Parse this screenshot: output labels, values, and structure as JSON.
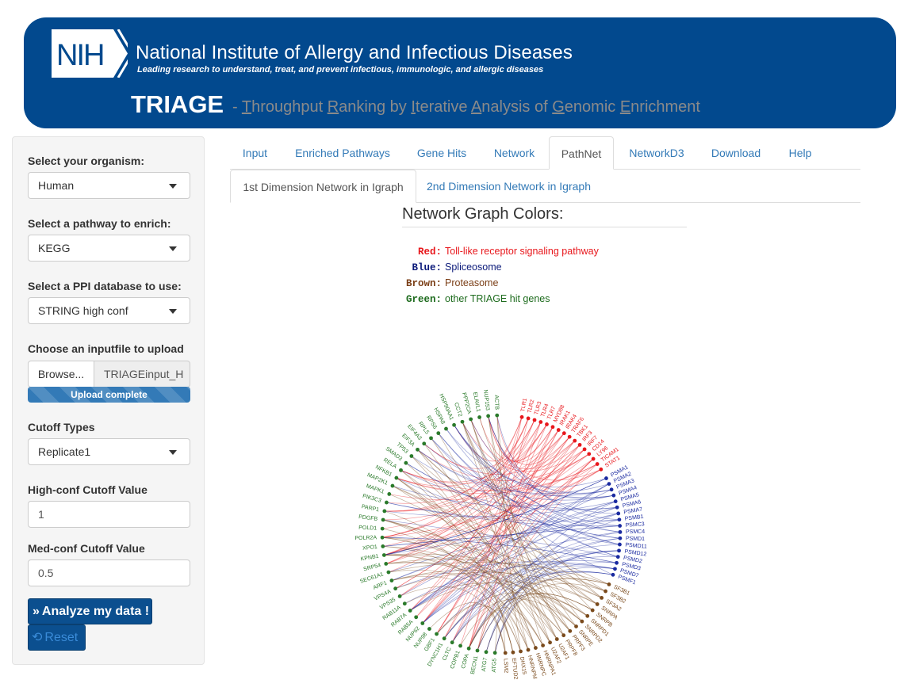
{
  "header": {
    "logo_text": "NIH",
    "institute_name": "National Institute of Allergy and Infectious Diseases",
    "tagline": "Leading research to understand, treat, and prevent infectious, immunologic, and allergic diseases",
    "app_title": "TRIAGE",
    "app_subtitle_parts": [
      {
        "text": " - ",
        "u": false
      },
      {
        "text": "T",
        "u": true
      },
      {
        "text": "hroughput ",
        "u": false
      },
      {
        "text": "R",
        "u": true
      },
      {
        "text": "anking by ",
        "u": false
      },
      {
        "text": "I",
        "u": true
      },
      {
        "text": "terative ",
        "u": false
      },
      {
        "text": "A",
        "u": true
      },
      {
        "text": "nalysis of ",
        "u": false
      },
      {
        "text": "G",
        "u": true
      },
      {
        "text": "enomic ",
        "u": false
      },
      {
        "text": "E",
        "u": true
      },
      {
        "text": "nrichment",
        "u": false
      }
    ]
  },
  "sidebar": {
    "organism_label": "Select your organism:",
    "organism_value": "Human",
    "pathway_label": "Select a pathway to enrich:",
    "pathway_value": "KEGG",
    "ppi_label": "Select a PPI database to use:",
    "ppi_value": "STRING high conf",
    "upload_label": "Choose an inputfile to upload",
    "browse_label": "Browse...",
    "file_name": "TRIAGEinput_H",
    "upload_status": "Upload complete",
    "upload_progress": 1.0,
    "cutoff_label": "Cutoff Types",
    "cutoff_value": "Replicate1",
    "high_label": "High-conf Cutoff Value",
    "high_value": "1",
    "med_label": "Med-conf Cutoff Value",
    "med_value": "0.5",
    "analyze_label": "Analyze my data !",
    "reset_label": "Reset"
  },
  "tabs": {
    "items": [
      "Input",
      "Enriched Pathways",
      "Gene Hits",
      "Network",
      "PathNet",
      "NetworkD3",
      "Download",
      "Help"
    ],
    "active": "PathNet"
  },
  "subtabs": {
    "items": [
      "1st Dimension Network in Igraph",
      "2nd Dimension Network in Igraph"
    ],
    "active": "1st Dimension Network in Igraph"
  },
  "legend": {
    "title": "Network Graph Colors:",
    "entries": [
      {
        "key": "Red:",
        "label": "Toll-like receptor signaling pathway",
        "color": "#e8171c"
      },
      {
        "key": "Blue:",
        "label": "Spliceosome",
        "color": "#0b1a7a"
      },
      {
        "key": "Brown:",
        "label": "Proteasome",
        "color": "#7b3f17"
      },
      {
        "key": "Green:",
        "label": "other TRIAGE hit genes",
        "color": "#1d6b1d"
      }
    ]
  },
  "network": {
    "colors": {
      "red": "#e8171c",
      "blue": "#1a2aa0",
      "brown": "#7a4a1c",
      "green": "#2a7a2a"
    },
    "blue_labels": [
      "PSMA1",
      "PSMA2",
      "PSMA3",
      "PSMA4",
      "PSMA5",
      "PSMA6",
      "PSMA7",
      "PSMB1",
      "PSMC3",
      "PSMC4",
      "PSMD1",
      "PSMD11",
      "PSMD12",
      "PSMD2",
      "PSMD3",
      "PSMD7",
      "PSMF1"
    ],
    "brown_labels": [
      "SF3B1",
      "SF3B2",
      "SF3A2",
      "SNRPA",
      "SNRPB",
      "SNRPD1",
      "SNRPD2",
      "SNRPE",
      "PRPF3",
      "PRPF8",
      "U2AF1",
      "U2AF2",
      "HNRNPA1",
      "HNRNPC",
      "HNRNPM",
      "DHX15",
      "EFTUD2",
      "LSM2"
    ],
    "red_labels": [
      "TLR1",
      "TLR2",
      "TLR3",
      "TLR4",
      "TLR7",
      "MYD88",
      "IRAK1",
      "IRAK4",
      "TRAF6",
      "TBK1",
      "IRF3",
      "IRF7",
      "CD14",
      "LY96",
      "TICAM1",
      "STAT1"
    ],
    "green_labels": [
      "ATG5",
      "ATG7",
      "BECN1",
      "COPA",
      "COPB1",
      "CLTC",
      "DYNC1H1",
      "GBF1",
      "NUP98",
      "NUP62",
      "RAB5A",
      "RAB7A",
      "RAB11A",
      "VPS35",
      "VPS4A",
      "ARF1",
      "SEC61A1",
      "SRP54",
      "KPNB1",
      "XPO1",
      "POLR2A",
      "POLD1",
      "PDGFB",
      "PARP1",
      "PIK3C3",
      "MAPK1",
      "MAP2K1",
      "NFKB1",
      "RELA",
      "SMAD3",
      "TP53",
      "EIF3A",
      "EIF4A3",
      "RPL5",
      "RPS6",
      "HSPA8",
      "HSP90AA1",
      "CCT2",
      "PPP2CA",
      "ELAVL1",
      "NUP153",
      "ACTB"
    ]
  }
}
